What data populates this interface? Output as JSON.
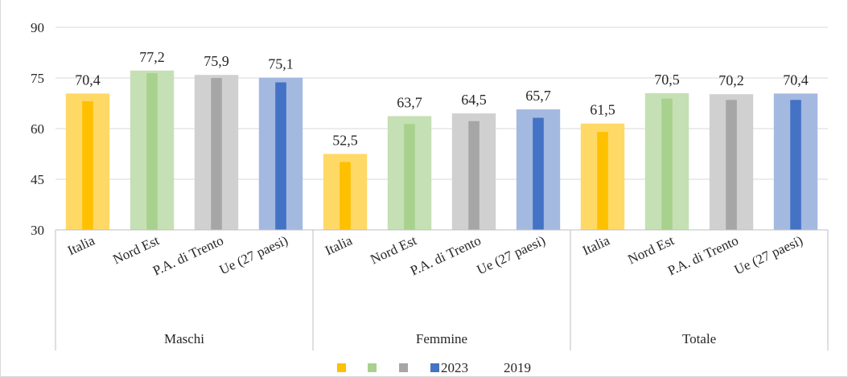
{
  "chart_data": {
    "type": "bar",
    "groups": [
      "Maschi",
      "Femmine",
      "Totale"
    ],
    "categories": [
      "Italia",
      "Nord Est",
      "P.A. di Trento",
      "Ue (27 paesi)"
    ],
    "series": [
      {
        "name": "2023",
        "values": [
          [
            70.4,
            77.2,
            75.9,
            75.1
          ],
          [
            52.5,
            63.7,
            64.5,
            65.7
          ],
          [
            61.5,
            70.5,
            70.2,
            70.4
          ]
        ],
        "data_labels": [
          [
            "70,4",
            "77,2",
            "75,9",
            "75,1"
          ],
          [
            "52,5",
            "63,7",
            "64,5",
            "65,7"
          ],
          [
            "61,5",
            "70,5",
            "70,2",
            "70,4"
          ]
        ]
      },
      {
        "name": "2019",
        "values": [
          [
            68.1,
            76.4,
            75.0,
            73.7
          ],
          [
            50.1,
            61.4,
            62.2,
            63.2
          ],
          [
            59.0,
            68.9,
            68.5,
            68.5
          ]
        ]
      }
    ],
    "category_colors_2023": [
      "#ffd966",
      "#c5e0b4",
      "#d0d0d0",
      "#a4b9e0"
    ],
    "category_colors_2019": [
      "#ffc000",
      "#a9d18e",
      "#a6a6a6",
      "#4472c4"
    ],
    "ylim": [
      30,
      90
    ],
    "yticks": [
      "30",
      "45",
      "60",
      "75",
      "90"
    ],
    "ytick_values": [
      30,
      45,
      60,
      75,
      90
    ],
    "grid": true,
    "legend_position": "bottom"
  },
  "legend": {
    "label_2023": "2023",
    "label_2019": "2019"
  }
}
